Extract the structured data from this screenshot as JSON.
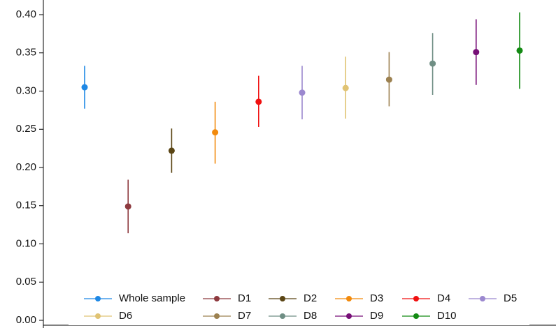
{
  "chart_data": {
    "type": "errorbar",
    "ylim": [
      0,
      0.4
    ],
    "yticks": [
      {
        "value": 0,
        "label": "0.00"
      },
      {
        "value": 0.05,
        "label": "0.05"
      },
      {
        "value": 0.1,
        "label": "0.10"
      },
      {
        "value": 0.15,
        "label": "0.15"
      },
      {
        "value": 0.2,
        "label": "0.20"
      },
      {
        "value": 0.25,
        "label": "0.25"
      },
      {
        "value": 0.3,
        "label": "0.30"
      },
      {
        "value": 0.35,
        "label": "0.35"
      },
      {
        "value": 0.4,
        "label": "0.40"
      }
    ],
    "series": [
      {
        "name": "Whole sample",
        "color": "#1e88e5",
        "values": [
          0.305
        ],
        "lower": [
          0.277
        ],
        "upper": [
          0.333
        ]
      },
      {
        "name": "D1",
        "color": "#8e3a3f",
        "values": [
          0.149
        ],
        "lower": [
          0.114
        ],
        "upper": [
          0.184
        ]
      },
      {
        "name": "D2",
        "color": "#5a4514",
        "values": [
          0.222
        ],
        "lower": [
          0.193
        ],
        "upper": [
          0.251
        ]
      },
      {
        "name": "D3",
        "color": "#f28a0c",
        "values": [
          0.246
        ],
        "lower": [
          0.205
        ],
        "upper": [
          0.286
        ]
      },
      {
        "name": "D4",
        "color": "#f01010",
        "values": [
          0.286
        ],
        "lower": [
          0.253
        ],
        "upper": [
          0.32
        ]
      },
      {
        "name": "D5",
        "color": "#9b88cf",
        "values": [
          0.298
        ],
        "lower": [
          0.263
        ],
        "upper": [
          0.333
        ]
      },
      {
        "name": "D6",
        "color": "#e0c373",
        "values": [
          0.304
        ],
        "lower": [
          0.264
        ],
        "upper": [
          0.345
        ]
      },
      {
        "name": "D7",
        "color": "#9c8150",
        "values": [
          0.315
        ],
        "lower": [
          0.28
        ],
        "upper": [
          0.351
        ]
      },
      {
        "name": "D8",
        "color": "#6f8e84",
        "values": [
          0.336
        ],
        "lower": [
          0.295
        ],
        "upper": [
          0.376
        ]
      },
      {
        "name": "D9",
        "color": "#770f77",
        "values": [
          0.351
        ],
        "lower": [
          0.308
        ],
        "upper": [
          0.394
        ]
      },
      {
        "name": "D10",
        "color": "#138a13",
        "values": [
          0.353
        ],
        "lower": [
          0.303
        ],
        "upper": [
          0.403
        ]
      }
    ]
  }
}
